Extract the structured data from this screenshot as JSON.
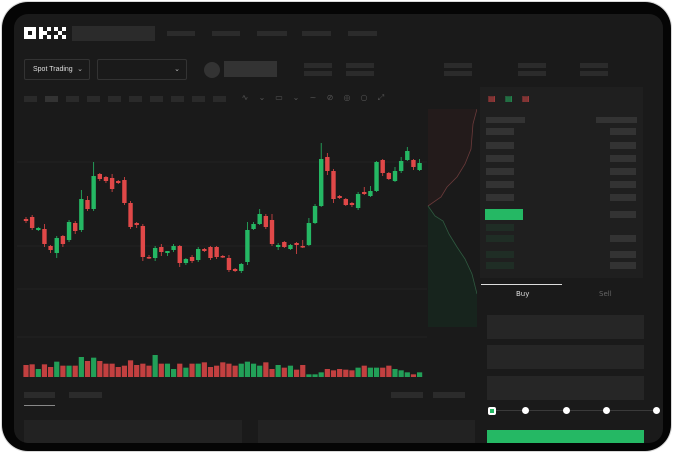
{
  "header": {
    "logo": "OKX"
  },
  "toolbar": {
    "market_select": "Spot Trading",
    "pair_select": ""
  },
  "trade": {
    "tabs": [
      "Buy",
      "Sell"
    ],
    "active_tab": "Buy",
    "leverage_steps": 5,
    "selected_step": 0
  },
  "colors": {
    "up": "#25b864",
    "down": "#e04848",
    "background": "#1a1a1a",
    "accent": "#25b864"
  },
  "icons": [
    "okx-logo",
    "chevron-down-icon",
    "orderbook-both-icon",
    "orderbook-buy-icon",
    "orderbook-sell-icon"
  ],
  "chart_data": {
    "type": "candlestick",
    "title": "",
    "xlabel": "",
    "ylabel": "",
    "grid": true,
    "candles_ohlc": [
      [
        95,
        97,
        91,
        93
      ],
      [
        97,
        99,
        84,
        86
      ],
      [
        84,
        87,
        83,
        86
      ],
      [
        85,
        90,
        67,
        70
      ],
      [
        68,
        69,
        61,
        64
      ],
      [
        61,
        78,
        56,
        76
      ],
      [
        78,
        79,
        67,
        70
      ],
      [
        74,
        94,
        72,
        92
      ],
      [
        91,
        93,
        80,
        83
      ],
      [
        84,
        124,
        82,
        115
      ],
      [
        114,
        118,
        103,
        105
      ],
      [
        105,
        152,
        103,
        138
      ],
      [
        140,
        141,
        133,
        135
      ],
      [
        137,
        138,
        131,
        133
      ],
      [
        136,
        140,
        122,
        125
      ],
      [
        133,
        134,
        130,
        131
      ],
      [
        134,
        137,
        109,
        111
      ],
      [
        111,
        113,
        85,
        87
      ],
      [
        91,
        92,
        86,
        89
      ],
      [
        88,
        90,
        53,
        57
      ],
      [
        57,
        59,
        55,
        56
      ],
      [
        56,
        68,
        53,
        66
      ],
      [
        67,
        70,
        58,
        62
      ],
      [
        61,
        63,
        58,
        63
      ],
      [
        64,
        70,
        62,
        68
      ],
      [
        68,
        69,
        47,
        51
      ],
      [
        51,
        56,
        49,
        55
      ],
      [
        57,
        59,
        51,
        53
      ],
      [
        54,
        67,
        52,
        65
      ],
      [
        65,
        66,
        62,
        63
      ],
      [
        67,
        68,
        54,
        56
      ],
      [
        67,
        68,
        55,
        57
      ],
      [
        58,
        59,
        56,
        57
      ],
      [
        56,
        59,
        42,
        44
      ],
      [
        45,
        46,
        42,
        43
      ],
      [
        43,
        51,
        41,
        50
      ],
      [
        52,
        92,
        49,
        84
      ],
      [
        85,
        92,
        84,
        90
      ],
      [
        90,
        105,
        89,
        100
      ],
      [
        98,
        100,
        85,
        87
      ],
      [
        94,
        100,
        68,
        70
      ],
      [
        67,
        71,
        64,
        69
      ],
      [
        72,
        73,
        66,
        67
      ],
      [
        65,
        70,
        64,
        69
      ],
      [
        71,
        72,
        60,
        69
      ],
      [
        68,
        74,
        66,
        67
      ],
      [
        69,
        96,
        68,
        91
      ],
      [
        91,
        110,
        90,
        108
      ],
      [
        108,
        171,
        107,
        155
      ],
      [
        157,
        161,
        139,
        143
      ],
      [
        143,
        145,
        111,
        115
      ],
      [
        118,
        119,
        115,
        116
      ],
      [
        115,
        116,
        108,
        109
      ],
      [
        111,
        112,
        107,
        109
      ],
      [
        106,
        122,
        104,
        120
      ],
      [
        122,
        127,
        119,
        120
      ],
      [
        118,
        128,
        117,
        123
      ],
      [
        123,
        153,
        122,
        152
      ],
      [
        154,
        155,
        138,
        141
      ],
      [
        141,
        142,
        134,
        135
      ],
      [
        133,
        147,
        132,
        143
      ],
      [
        143,
        157,
        141,
        153
      ],
      [
        154,
        167,
        153,
        163
      ],
      [
        154,
        155,
        144,
        147
      ],
      [
        144,
        155,
        143,
        151
      ]
    ],
    "volume": [
      36,
      38,
      24,
      38,
      30,
      46,
      34,
      34,
      34,
      60,
      48,
      58,
      48,
      40,
      40,
      30,
      34,
      50,
      36,
      40,
      34,
      66,
      40,
      40,
      24,
      40,
      28,
      40,
      40,
      44,
      30,
      34,
      44,
      40,
      34,
      40,
      46,
      40,
      34,
      44,
      24,
      36,
      28,
      34,
      22,
      36,
      8,
      8,
      14,
      24,
      20,
      24,
      22,
      20,
      28,
      34,
      28,
      28,
      28,
      34,
      24,
      20,
      14,
      8,
      14
    ]
  }
}
